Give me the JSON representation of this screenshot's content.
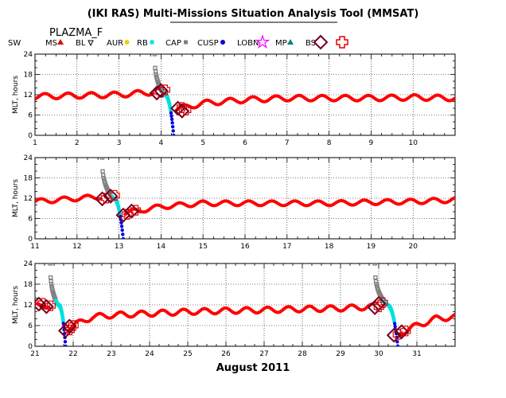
{
  "title": "(IKI RAS) Multi-Missions Situation Analysis Tool (MMSAT)",
  "spacecraft": "PLAZMA_F",
  "legend": [
    {
      "label": "SW",
      "marker": "none",
      "color": "#000000"
    },
    {
      "label": "MS",
      "marker": "triangle-icon",
      "color": "#e00000"
    },
    {
      "label": "BL",
      "marker": "triangle-down-icon",
      "color": "#000000"
    },
    {
      "label": "AUR",
      "marker": "circle-icon",
      "color": "#f0d000"
    },
    {
      "label": "RB",
      "marker": "square-icon",
      "color": "#00e0e0"
    },
    {
      "label": "CAP",
      "marker": "square-icon",
      "color": "#808080"
    },
    {
      "label": "CUSP",
      "marker": "circle-icon",
      "color": "#0000e0"
    },
    {
      "label": "LOBN",
      "marker": "star-icon",
      "color": "#ff00ff"
    },
    {
      "label": "MP",
      "marker": "triangle-icon",
      "color": "#008080"
    },
    {
      "label": "BS",
      "marker": "diamond-icon",
      "color": "#700020"
    },
    {
      "label": "",
      "marker": "cross-icon",
      "color": "#e00000"
    }
  ],
  "xlabel": "August 2011",
  "colors": {
    "sw": "#ff0000",
    "cap": "#808080",
    "rb": "#00e0e0",
    "cusp": "#0000e0",
    "bs": "#700020",
    "cross": "#e00000"
  },
  "chart_data": [
    {
      "type": "scatter",
      "ylabel": "MLT, hours",
      "xlim": [
        1,
        11
      ],
      "ylim": [
        0,
        24
      ],
      "xticks": [
        1,
        2,
        3,
        4,
        5,
        6,
        7,
        8,
        9,
        10
      ],
      "yticks": [
        0,
        6,
        12,
        18,
        24
      ],
      "sw_baseline": [
        [
          1,
          11.5
        ],
        [
          3,
          12
        ],
        [
          3.85,
          12.8
        ],
        [
          4.3,
          7.5
        ],
        [
          5,
          9.5
        ],
        [
          6,
          10.5
        ],
        [
          7,
          11
        ],
        [
          8,
          11
        ],
        [
          9,
          11
        ],
        [
          10,
          11.2
        ],
        [
          11,
          11
        ]
      ],
      "sw_wave_amp": 0.8,
      "magnetosphere_crossings": [
        {
          "x_in": 3.85,
          "x_out": 4.3
        }
      ],
      "bs_markers": [
        [
          3.9,
          12.5
        ],
        [
          4.0,
          13.2
        ],
        [
          4.4,
          8.0
        ],
        [
          4.5,
          7.2
        ]
      ]
    },
    {
      "type": "scatter",
      "ylabel": "MLT, hours",
      "xlim": [
        11,
        21
      ],
      "ylim": [
        0,
        24
      ],
      "xticks": [
        11,
        12,
        13,
        14,
        15,
        16,
        17,
        18,
        19,
        20
      ],
      "yticks": [
        0,
        6,
        12,
        18,
        24
      ],
      "sw_baseline": [
        [
          11,
          11
        ],
        [
          12.6,
          12.5
        ],
        [
          13.1,
          7.5
        ],
        [
          14,
          9.5
        ],
        [
          15,
          10.5
        ],
        [
          16,
          10.5
        ],
        [
          17,
          10.5
        ],
        [
          18,
          10.5
        ],
        [
          19,
          10.8
        ],
        [
          20,
          11
        ],
        [
          21,
          11.5
        ]
      ],
      "sw_wave_amp": 0.7,
      "magnetosphere_crossings": [
        {
          "x_in": 12.6,
          "x_out": 13.1
        }
      ],
      "bs_markers": [
        [
          12.6,
          11.8
        ],
        [
          12.8,
          12.6
        ],
        [
          13.1,
          7.0
        ],
        [
          13.3,
          8.2
        ]
      ]
    },
    {
      "type": "scatter",
      "ylabel": "MLT, hours",
      "xlim": [
        21,
        32
      ],
      "ylim": [
        0,
        24
      ],
      "xticks": [
        21,
        22,
        23,
        24,
        25,
        26,
        27,
        28,
        29,
        30,
        31
      ],
      "yticks": [
        0,
        6,
        12,
        18,
        24
      ],
      "sw_baseline": [
        [
          21,
          11.5
        ],
        [
          21.4,
          12
        ],
        [
          21.8,
          5
        ],
        [
          22.5,
          8.5
        ],
        [
          23,
          9
        ],
        [
          24,
          9.5
        ],
        [
          25,
          10
        ],
        [
          26,
          10.3
        ],
        [
          27,
          10.5
        ],
        [
          28,
          10.8
        ],
        [
          29,
          11
        ],
        [
          29.9,
          11.5
        ],
        [
          30.5,
          3.5
        ],
        [
          31,
          6
        ],
        [
          31.5,
          8
        ],
        [
          32,
          8.5
        ]
      ],
      "sw_wave_amp": 0.8,
      "magnetosphere_crossings": [
        {
          "x_in": 21.4,
          "x_out": 21.8
        },
        {
          "x_in": 29.9,
          "x_out": 30.5
        }
      ],
      "bs_markers": [
        [
          21.1,
          12.2
        ],
        [
          21.3,
          11.5
        ],
        [
          21.8,
          4.5
        ],
        [
          21.9,
          5.8
        ],
        [
          29.9,
          11.2
        ],
        [
          30.0,
          12.4
        ],
        [
          30.4,
          3.2
        ],
        [
          30.6,
          4.2
        ]
      ]
    }
  ]
}
